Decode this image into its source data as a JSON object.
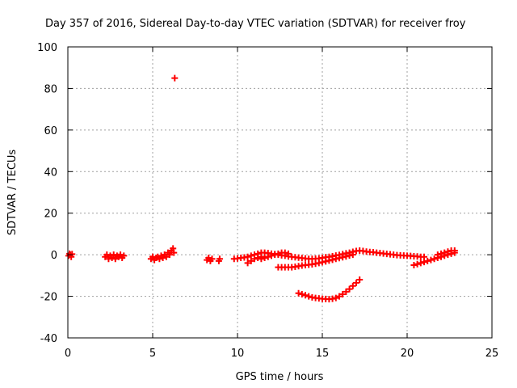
{
  "chart_data": {
    "type": "scatter",
    "title": "Day 357 of 2016, Sidereal Day-to-day VTEC variation (SDTVAR) for receiver froy",
    "xlabel": "GPS time / hours",
    "ylabel": "SDTVAR / TECUs",
    "xlim": [
      0,
      25
    ],
    "ylim": [
      -40,
      100
    ],
    "xticks": [
      0,
      5,
      10,
      15,
      20,
      25
    ],
    "yticks": [
      -40,
      -20,
      0,
      20,
      40,
      60,
      80,
      100
    ],
    "grid": true,
    "marker": "+",
    "color": "#ff0000",
    "series": [
      {
        "points": [
          [
            0.05,
            -0.5
          ],
          [
            0.1,
            0.5
          ],
          [
            0.15,
            0
          ],
          [
            0.2,
            -1
          ],
          [
            0.25,
            0.3
          ],
          [
            2.2,
            -1
          ],
          [
            2.3,
            0
          ],
          [
            2.4,
            -2
          ],
          [
            2.5,
            -0.5
          ],
          [
            2.6,
            -1.5
          ],
          [
            2.7,
            0
          ],
          [
            2.8,
            -2
          ],
          [
            2.9,
            -0.5
          ],
          [
            3.0,
            -1
          ],
          [
            3.1,
            0
          ],
          [
            3.2,
            -1.5
          ],
          [
            3.3,
            -0.5
          ],
          [
            4.9,
            -2
          ],
          [
            5.0,
            -1
          ],
          [
            5.1,
            -2.5
          ],
          [
            5.2,
            -1.5
          ],
          [
            5.3,
            -1
          ],
          [
            5.4,
            -2
          ],
          [
            5.5,
            -0.5
          ],
          [
            5.6,
            -1.5
          ],
          [
            5.7,
            0
          ],
          [
            5.8,
            -1
          ],
          [
            5.9,
            1
          ],
          [
            6.0,
            0
          ],
          [
            6.1,
            2
          ],
          [
            6.2,
            3
          ],
          [
            6.25,
            1
          ],
          [
            6.3,
            85
          ],
          [
            8.2,
            -2.5
          ],
          [
            8.3,
            -1.5
          ],
          [
            8.4,
            -3
          ],
          [
            8.5,
            -2
          ],
          [
            8.9,
            -3
          ],
          [
            8.95,
            -2
          ],
          [
            9.8,
            -2
          ],
          [
            10.0,
            -1.8
          ],
          [
            10.2,
            -1.5
          ],
          [
            10.4,
            -1.3
          ],
          [
            10.6,
            -1
          ],
          [
            10.8,
            -0.5
          ],
          [
            11.0,
            0
          ],
          [
            11.2,
            0.5
          ],
          [
            11.4,
            1
          ],
          [
            11.6,
            1
          ],
          [
            11.8,
            0.8
          ],
          [
            12.0,
            0.5
          ],
          [
            12.2,
            0.3
          ],
          [
            12.4,
            0
          ],
          [
            12.6,
            -0.3
          ],
          [
            12.8,
            -0.5
          ],
          [
            13.0,
            -0.8
          ],
          [
            13.2,
            -1
          ],
          [
            13.4,
            -1.2
          ],
          [
            13.6,
            -1.4
          ],
          [
            13.8,
            -1.6
          ],
          [
            14.0,
            -1.8
          ],
          [
            14.2,
            -2
          ],
          [
            14.4,
            -2
          ],
          [
            14.6,
            -1.9
          ],
          [
            14.8,
            -1.8
          ],
          [
            15.0,
            -1.5
          ],
          [
            15.2,
            -1.2
          ],
          [
            15.4,
            -1
          ],
          [
            15.6,
            -0.7
          ],
          [
            15.8,
            -0.4
          ],
          [
            16.0,
            -0.1
          ],
          [
            16.2,
            0.3
          ],
          [
            16.4,
            0.7
          ],
          [
            16.6,
            1
          ],
          [
            16.8,
            1.4
          ],
          [
            17.0,
            1.8
          ],
          [
            17.2,
            2
          ],
          [
            17.4,
            1.8
          ],
          [
            17.6,
            1.5
          ],
          [
            17.8,
            1.3
          ],
          [
            18.0,
            1.2
          ],
          [
            18.2,
            1
          ],
          [
            18.4,
            0.8
          ],
          [
            18.6,
            0.6
          ],
          [
            18.8,
            0.4
          ],
          [
            19.0,
            0.2
          ],
          [
            19.2,
            0
          ],
          [
            19.4,
            -0.2
          ],
          [
            19.6,
            -0.3
          ],
          [
            19.8,
            -0.4
          ],
          [
            20.0,
            -0.5
          ],
          [
            20.2,
            -0.6
          ],
          [
            20.4,
            -0.7
          ],
          [
            20.6,
            -0.8
          ],
          [
            20.8,
            -1
          ],
          [
            21.0,
            -1
          ],
          [
            10.6,
            -4
          ],
          [
            10.8,
            -3
          ],
          [
            11.0,
            -2
          ],
          [
            11.2,
            -1.5
          ],
          [
            11.4,
            -1
          ],
          [
            11.4,
            -2
          ],
          [
            11.6,
            -1.5
          ],
          [
            11.8,
            -1
          ],
          [
            12.0,
            -0.5
          ],
          [
            12.2,
            0
          ],
          [
            12.4,
            0.5
          ],
          [
            12.6,
            1
          ],
          [
            12.8,
            1
          ],
          [
            13.0,
            0.5
          ],
          [
            12.4,
            -6
          ],
          [
            12.6,
            -6
          ],
          [
            12.8,
            -6
          ],
          [
            13.0,
            -6
          ],
          [
            13.2,
            -6
          ],
          [
            13.4,
            -5.8
          ],
          [
            13.6,
            -5.5
          ],
          [
            13.8,
            -5.2
          ],
          [
            14.0,
            -5
          ],
          [
            14.2,
            -4.8
          ],
          [
            14.4,
            -4.6
          ],
          [
            14.6,
            -4.3
          ],
          [
            14.8,
            -4
          ],
          [
            15.0,
            -3.6
          ],
          [
            15.2,
            -3.2
          ],
          [
            15.4,
            -2.8
          ],
          [
            15.6,
            -2.4
          ],
          [
            15.8,
            -2
          ],
          [
            16.0,
            -1.6
          ],
          [
            16.2,
            -1.2
          ],
          [
            16.4,
            -0.8
          ],
          [
            16.6,
            -0.4
          ],
          [
            16.8,
            0
          ],
          [
            13.6,
            -18.5
          ],
          [
            13.8,
            -19
          ],
          [
            14.0,
            -19.5
          ],
          [
            14.2,
            -20
          ],
          [
            14.4,
            -20.5
          ],
          [
            14.6,
            -20.8
          ],
          [
            14.8,
            -21
          ],
          [
            15.0,
            -21.2
          ],
          [
            15.2,
            -21.3
          ],
          [
            15.4,
            -21.4
          ],
          [
            15.6,
            -21.2
          ],
          [
            15.8,
            -20.8
          ],
          [
            16.0,
            -20
          ],
          [
            16.2,
            -19
          ],
          [
            16.4,
            -17.8
          ],
          [
            16.6,
            -16.5
          ],
          [
            16.8,
            -15
          ],
          [
            17.0,
            -13.5
          ],
          [
            17.2,
            -12
          ],
          [
            20.4,
            -5
          ],
          [
            20.6,
            -4.5
          ],
          [
            20.8,
            -4
          ],
          [
            21.0,
            -3.5
          ],
          [
            21.2,
            -3
          ],
          [
            21.4,
            -2.5
          ],
          [
            21.6,
            -2
          ],
          [
            21.8,
            -1.5
          ],
          [
            22.0,
            -1
          ],
          [
            22.2,
            -0.5
          ],
          [
            22.4,
            0
          ],
          [
            22.6,
            0.5
          ],
          [
            22.8,
            1
          ],
          [
            21.8,
            0
          ],
          [
            22.0,
            0.5
          ],
          [
            22.2,
            1
          ],
          [
            22.4,
            1.5
          ],
          [
            22.6,
            2
          ],
          [
            22.8,
            2
          ]
        ]
      }
    ]
  }
}
